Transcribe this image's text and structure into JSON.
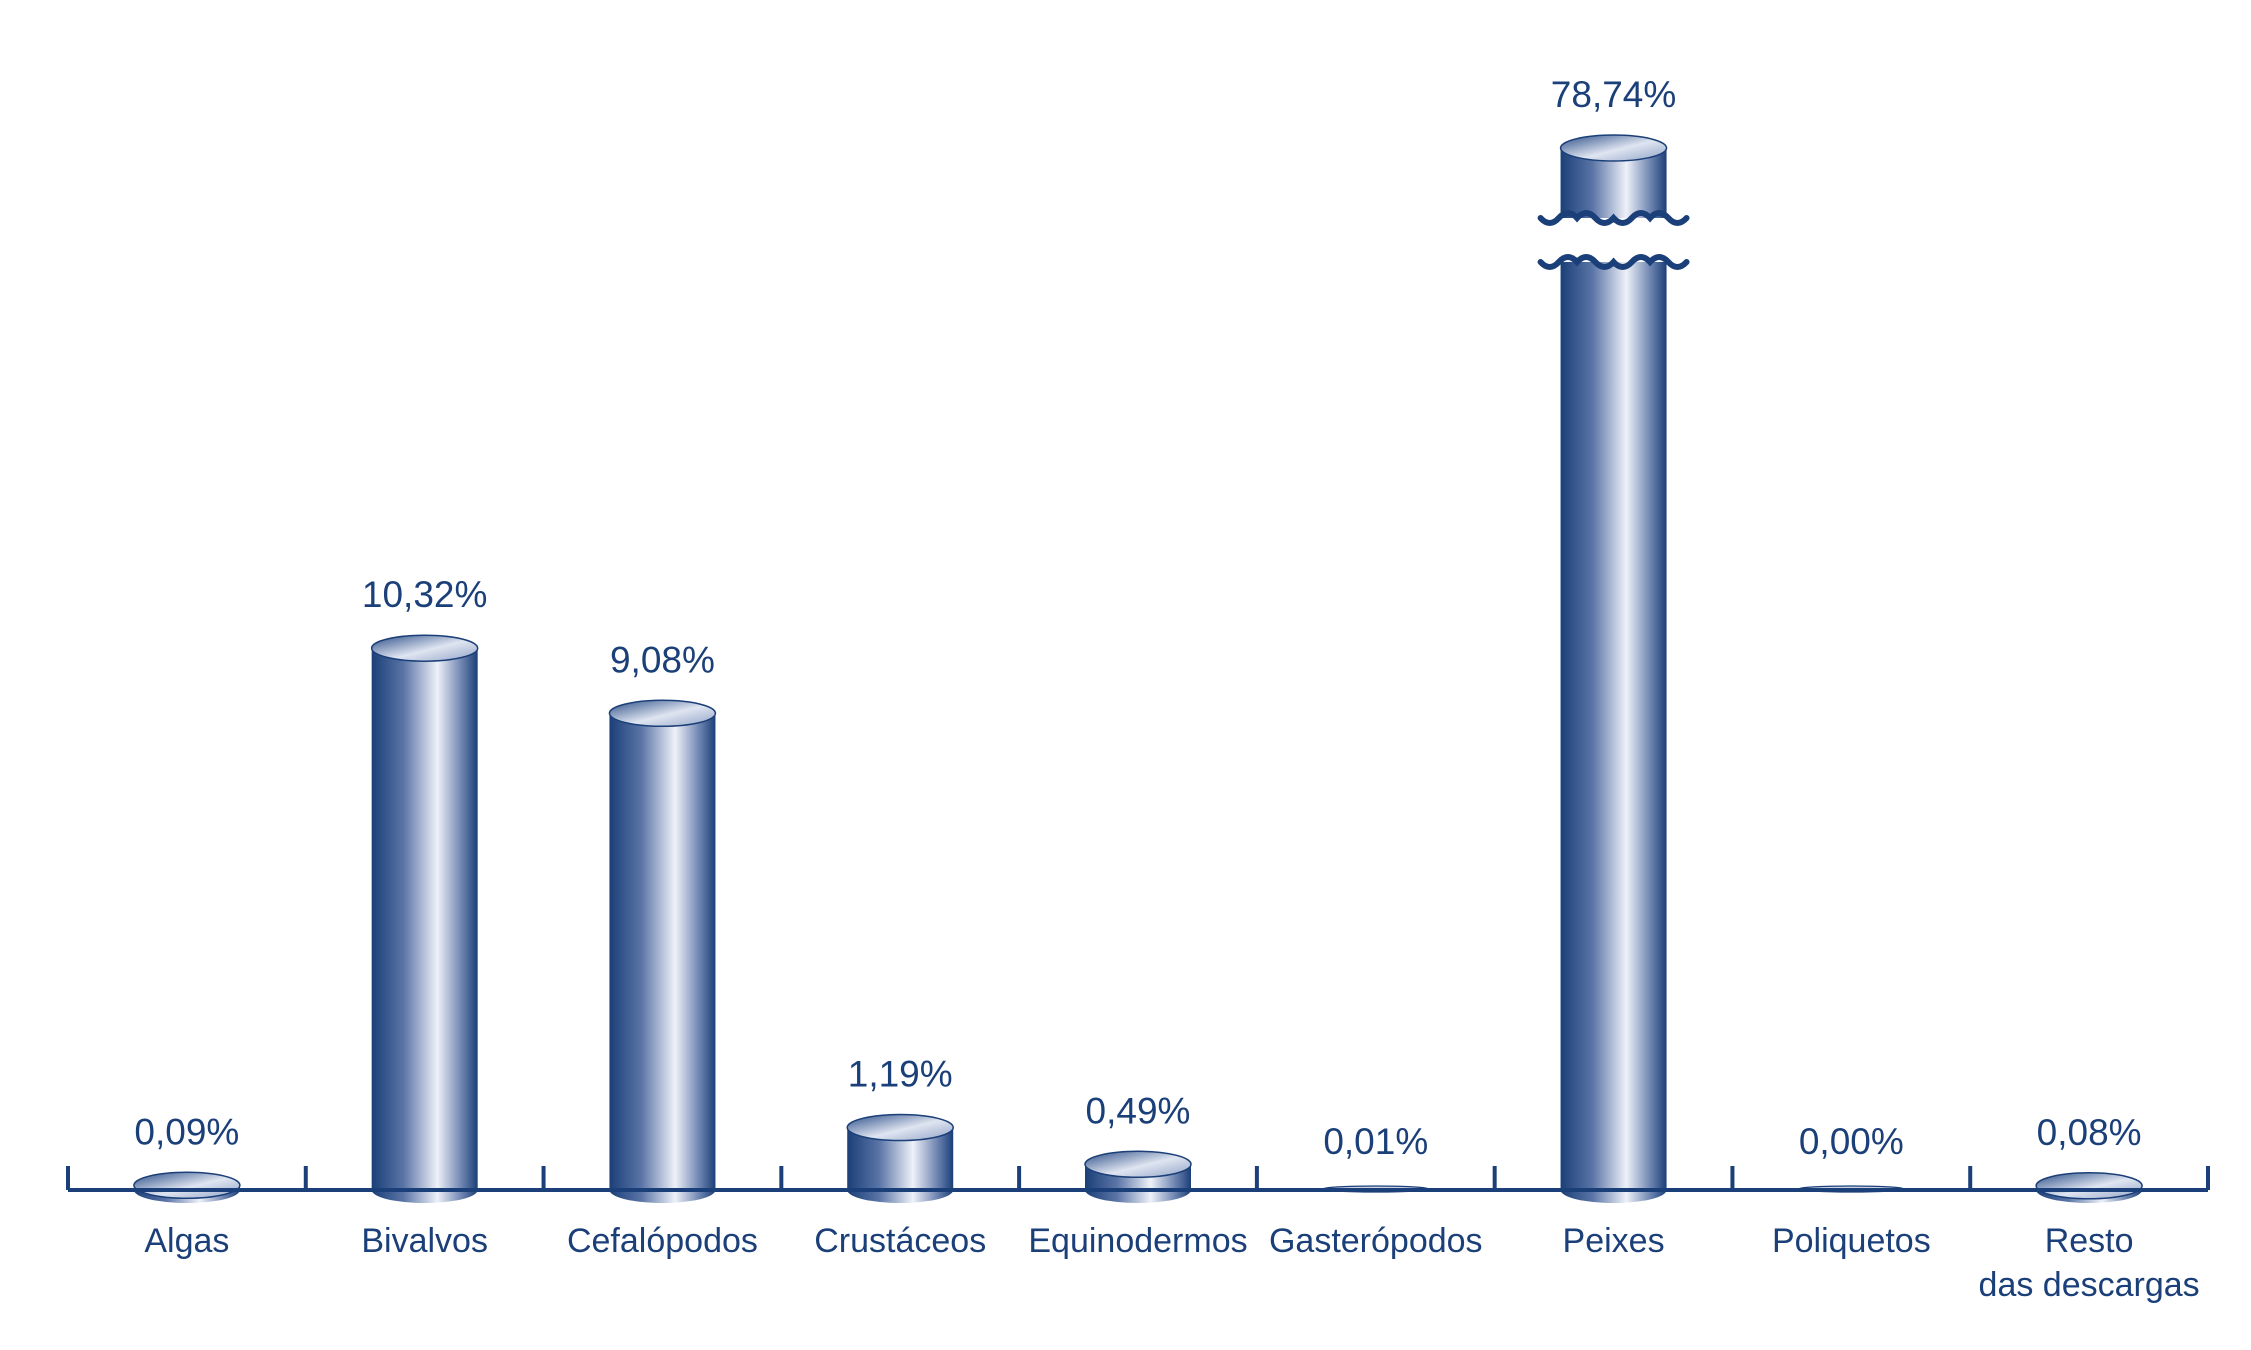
{
  "chart_data": {
    "type": "bar",
    "style": "3d-cylinder",
    "categories": [
      [
        "Algas"
      ],
      [
        "Bivalvos"
      ],
      [
        "Cefalópodos"
      ],
      [
        "Crustáceos"
      ],
      [
        "Equinodermos"
      ],
      [
        "Gasterópodos"
      ],
      [
        "Peixes"
      ],
      [
        "Poliquetos"
      ],
      [
        "Resto",
        "das descargas"
      ]
    ],
    "values": [
      0.09,
      10.32,
      9.08,
      1.19,
      0.49,
      0.01,
      78.74,
      0.0,
      0.08
    ],
    "value_labels": [
      "0,09%",
      "10,32%",
      "9,08%",
      "1,19%",
      "0,49%",
      "0,01%",
      "78,74%",
      "0,00%",
      "0,08%"
    ],
    "axis_break": true,
    "title": "",
    "xlabel": "",
    "ylabel": "",
    "grid": false,
    "legend": "none",
    "colors": {
      "bar_dark": "#1b3f78",
      "bar_light": "#eef1f8",
      "text": "#1b3f78",
      "axis": "#1b3f78"
    }
  }
}
